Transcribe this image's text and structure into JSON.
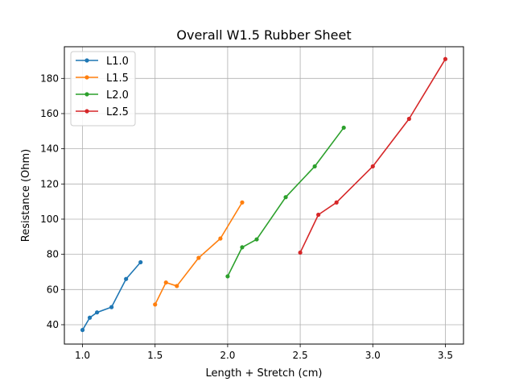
{
  "chart_data": {
    "type": "line",
    "title": "Overall W1.5 Rubber Sheet",
    "xlabel": "Length + Stretch (cm)",
    "ylabel": "Resistance (Ohm)",
    "xlim": [
      0.875,
      3.625
    ],
    "ylim": [
      29,
      198
    ],
    "x_ticks": [
      1.0,
      1.5,
      2.0,
      2.5,
      3.0,
      3.5
    ],
    "x_tick_labels": [
      "1.0",
      "1.5",
      "2.0",
      "2.5",
      "3.0",
      "3.5"
    ],
    "y_ticks": [
      40,
      60,
      80,
      100,
      120,
      140,
      160,
      180
    ],
    "y_tick_labels": [
      "40",
      "60",
      "80",
      "100",
      "120",
      "140",
      "160",
      "180"
    ],
    "grid": true,
    "legend_position": "top-left",
    "series": [
      {
        "name": "L1.0",
        "color": "#1f77b4",
        "x": [
          1.0,
          1.05,
          1.1,
          1.2,
          1.3,
          1.4
        ],
        "y": [
          37,
          44,
          47,
          50,
          66,
          75.5
        ]
      },
      {
        "name": "L1.5",
        "color": "#ff7f0e",
        "x": [
          1.5,
          1.575,
          1.65,
          1.8,
          1.95,
          2.1
        ],
        "y": [
          51.5,
          64,
          62,
          78,
          89,
          109.5
        ]
      },
      {
        "name": "L2.0",
        "color": "#2ca02c",
        "x": [
          2.0,
          2.1,
          2.2,
          2.4,
          2.6,
          2.8
        ],
        "y": [
          67.5,
          84,
          88.5,
          112.5,
          130,
          152
        ]
      },
      {
        "name": "L2.5",
        "color": "#d62728",
        "x": [
          2.5,
          2.625,
          2.75,
          3.0,
          3.25,
          3.5
        ],
        "y": [
          81,
          102.5,
          109.5,
          130,
          157,
          191
        ]
      }
    ]
  }
}
